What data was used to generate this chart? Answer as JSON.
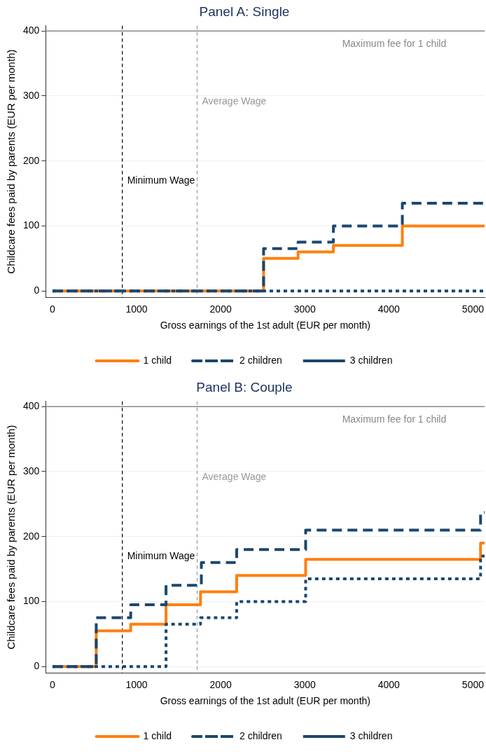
{
  "chart_data": [
    {
      "type": "step",
      "title": "Panel A: Single",
      "xlabel": "Gross earnings of the 1st adult (EUR per month)",
      "ylabel": "Childcare fees paid by parents (EUR per month)",
      "xlim": [
        -80,
        5140
      ],
      "xticks": [
        0,
        1000,
        2000,
        3000,
        4000,
        5000
      ],
      "ylim": [
        -10,
        408
      ],
      "yticks": [
        0,
        100,
        200,
        300,
        400
      ],
      "grid": "y",
      "legend": "bottom",
      "series": [
        {
          "name": "1 child",
          "color": "#ff7f0e",
          "line_style": "solid",
          "x": [
            0,
            2510,
            2920,
            3340,
            4160,
            5140
          ],
          "values": [
            0,
            50,
            60,
            70,
            100,
            100
          ]
        },
        {
          "name": "2 children",
          "color": "#1a476f",
          "line_style": "dashed",
          "x": [
            0,
            2510,
            2920,
            3340,
            4160,
            5140
          ],
          "values": [
            0,
            65,
            75,
            100,
            135,
            135
          ]
        },
        {
          "name": "3 children",
          "color": "#1a476f",
          "line_style": "dotted",
          "x": [
            0,
            5140
          ],
          "values": [
            0,
            0
          ]
        }
      ],
      "ref_lines": [
        {
          "axis": "x",
          "value": 830,
          "label": "Minimum Wage",
          "color": "#000000",
          "line_style": "dashed"
        },
        {
          "axis": "x",
          "value": 1720,
          "label": "Average Wage",
          "color": "#999999",
          "line_style": "dashed"
        },
        {
          "axis": "y",
          "value": 400,
          "label": "Maximum fee for 1 child",
          "color": "#888888",
          "line_style": "solid"
        }
      ]
    },
    {
      "type": "step",
      "title": "Panel B: Couple",
      "xlabel": "Gross earnings of the 1st adult (EUR per month)",
      "ylabel": "Childcare fees paid by parents (EUR per month)",
      "xlim": [
        -80,
        5140
      ],
      "xticks": [
        0,
        1000,
        2000,
        3000,
        4000,
        5000
      ],
      "ylim": [
        -10,
        408
      ],
      "yticks": [
        0,
        100,
        200,
        300,
        400
      ],
      "grid": "y",
      "legend": "bottom",
      "series": [
        {
          "name": "1 child",
          "color": "#ff7f0e",
          "line_style": "solid",
          "x": [
            0,
            520,
            930,
            1350,
            1760,
            2190,
            3010,
            5090,
            5140
          ],
          "values": [
            0,
            55,
            65,
            95,
            115,
            140,
            165,
            190,
            190
          ]
        },
        {
          "name": "2 children",
          "color": "#1a476f",
          "line_style": "dashed",
          "x": [
            0,
            520,
            930,
            1350,
            1770,
            2190,
            3010,
            5090,
            5140
          ],
          "values": [
            0,
            75,
            95,
            125,
            160,
            180,
            210,
            237,
            237
          ]
        },
        {
          "name": "3 children",
          "color": "#1a476f",
          "line_style": "dotted",
          "x": [
            0,
            1350,
            1760,
            2190,
            3010,
            5090,
            5140
          ],
          "values": [
            0,
            65,
            75,
            100,
            135,
            170,
            170
          ]
        }
      ],
      "ref_lines": [
        {
          "axis": "x",
          "value": 830,
          "label": "Minimum Wage",
          "color": "#000000",
          "line_style": "dashed"
        },
        {
          "axis": "x",
          "value": 1720,
          "label": "Average Wage",
          "color": "#999999",
          "line_style": "dashed"
        },
        {
          "axis": "y",
          "value": 400,
          "label": "Maximum fee for 1 child",
          "color": "#888888",
          "line_style": "solid"
        }
      ]
    }
  ]
}
